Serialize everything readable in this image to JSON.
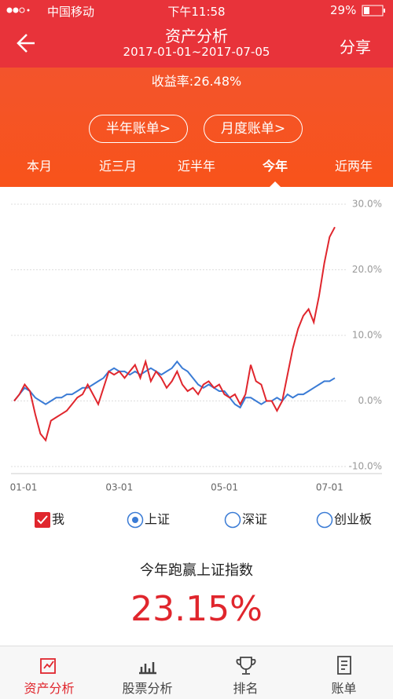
{
  "status_bar": {
    "carrier": "中国移动",
    "time": "下午11:58",
    "battery": "29%"
  },
  "header": {
    "title": "资产分析",
    "subtitle": "2017-01-01~2017-07-05",
    "share": "分享"
  },
  "summary": {
    "yield": "收益率:26.48%"
  },
  "buttons": [
    "半年账单>",
    "月度账单>"
  ],
  "tabs": {
    "items": [
      "本月",
      "近三月",
      "近半年",
      "今年",
      "近两年"
    ],
    "selected": 3
  },
  "chart_data": {
    "type": "line",
    "categories": [
      "01-01",
      null,
      null,
      null,
      null,
      null,
      null,
      null,
      null,
      null,
      null,
      null,
      null,
      null,
      null,
      null,
      null,
      null,
      null,
      null,
      "03-01",
      null,
      null,
      null,
      null,
      null,
      null,
      null,
      null,
      null,
      null,
      null,
      null,
      null,
      null,
      null,
      null,
      null,
      null,
      null,
      "05-01",
      null,
      null,
      null,
      null,
      null,
      null,
      null,
      null,
      null,
      null,
      null,
      null,
      null,
      null,
      null,
      null,
      null,
      null,
      null,
      "07-01",
      null
    ],
    "series": [
      {
        "name": "我",
        "color": "#e0262d",
        "values": [
          0,
          1,
          2.5,
          1.5,
          -2,
          -5,
          -6,
          -3,
          -2.5,
          -2,
          -1.5,
          -0.5,
          0.5,
          1,
          2.5,
          1,
          -0.5,
          2,
          4.5,
          4,
          4.5,
          3.5,
          4.5,
          5.5,
          3.5,
          6,
          3,
          4.5,
          3.5,
          2,
          3,
          4.5,
          2.5,
          1.5,
          2,
          1,
          2.5,
          3,
          2,
          2.5,
          1,
          0.5,
          1,
          -0.5,
          1,
          5.5,
          3,
          2.5,
          0,
          0,
          -1.5,
          0,
          4,
          8,
          11,
          13,
          14,
          12,
          16,
          21,
          25,
          26.5
        ]
      },
      {
        "name": "上证",
        "color": "#3a7bd5",
        "values": [
          0,
          1,
          2,
          1.5,
          0.5,
          0,
          -0.5,
          0,
          0.5,
          0.5,
          1,
          1,
          1.5,
          2,
          2,
          2.5,
          3,
          3.5,
          4.5,
          5,
          4.5,
          4.5,
          4,
          4.5,
          4,
          4.5,
          5,
          4.5,
          4,
          4.5,
          5,
          6,
          5,
          4.5,
          3.5,
          2.5,
          2,
          2.5,
          2,
          1.5,
          1.5,
          0.5,
          -0.5,
          -1,
          0.5,
          0.5,
          0,
          -0.5,
          0,
          0,
          0.5,
          0,
          1,
          0.5,
          1,
          1,
          1.5,
          2,
          2.5,
          3,
          3,
          3.5
        ]
      }
    ],
    "hidden_series": [
      {
        "name": "深证"
      },
      {
        "name": "创业板"
      }
    ],
    "ylim": [
      -10,
      30
    ],
    "yticks": [
      {
        "value": -10,
        "label": "-10.0%"
      },
      {
        "value": 0,
        "label": "0.0%"
      },
      {
        "value": 10,
        "label": "10.0%"
      },
      {
        "value": 20,
        "label": "20.0%"
      },
      {
        "value": 30,
        "label": "30.0%"
      }
    ],
    "grid": true
  },
  "comparison": {
    "label": "今年跑赢上证指数",
    "value": "23.15%"
  },
  "nav": {
    "items": [
      "资产分析",
      "股票分析",
      "排名",
      "账单"
    ],
    "active": 0
  }
}
